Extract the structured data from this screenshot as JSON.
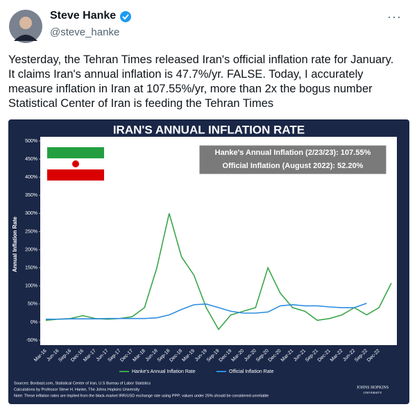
{
  "tweet": {
    "name": "Steve Hanke",
    "handle": "@steve_hanke",
    "text": "Yesterday, the Tehran Times released Iran's official inflation rate for January. It claims Iran's annual inflation is 47.7%/yr. FALSE. Today, I accurately measure inflation in Iran at 107.55%/yr, more than 2x the bogus number Statistical Center of Iran is feeding the Tehran Times"
  },
  "chart_data": {
    "type": "line",
    "title": "IRAN'S ANNUAL INFLATION RATE",
    "y_label": "Annual Inflation Rate",
    "categories": [
      "Mar-16",
      "Jun-16",
      "Sep-16",
      "Dec-16",
      "Mar-17",
      "Jun-17",
      "Sep-17",
      "Dec-17",
      "Mar-18",
      "Jun-18",
      "Sep-18",
      "Dec-18",
      "Mar-19",
      "Jun-19",
      "Sep-19",
      "Dec-19",
      "Mar-20",
      "Jun-20",
      "Sep-20",
      "Dec-20",
      "Mar-21",
      "Jun-21",
      "Sep-21",
      "Dec-21",
      "Mar-22",
      "Jun-22",
      "Sep-22",
      "Dec-22",
      null
    ],
    "series": [
      {
        "name": "Hanke's Annual Inflation Rate",
        "color": "#3aa64a",
        "values": [
          5,
          8,
          10,
          18,
          10,
          8,
          10,
          15,
          40,
          150,
          300,
          180,
          130,
          40,
          -20,
          20,
          30,
          40,
          150,
          80,
          40,
          30,
          5,
          10,
          20,
          40,
          20,
          40,
          107.55
        ]
      },
      {
        "name": "Official Inflation Rate",
        "color": "#2e8de0",
        "values": [
          8,
          8,
          9,
          9,
          9,
          10,
          10,
          10,
          10,
          12,
          20,
          35,
          48,
          50,
          40,
          30,
          25,
          25,
          28,
          45,
          48,
          45,
          45,
          42,
          40,
          40,
          52,
          null,
          null
        ]
      }
    ],
    "ylim": [
      -50,
      500
    ],
    "yticks": [
      {
        "value": -50,
        "label": "-50%"
      },
      {
        "value": 0,
        "label": "0%"
      },
      {
        "value": 50,
        "label": "50%"
      },
      {
        "value": 100,
        "label": "100%"
      },
      {
        "value": 150,
        "label": "150%"
      },
      {
        "value": 200,
        "label": "200%"
      },
      {
        "value": 250,
        "label": "250%"
      },
      {
        "value": 300,
        "label": "300%"
      },
      {
        "value": 350,
        "label": "350%"
      },
      {
        "value": 400,
        "label": "400%"
      },
      {
        "value": 450,
        "label": "450%"
      },
      {
        "value": 500,
        "label": "500%"
      }
    ],
    "annotations": [
      "Hanke's Annual Inflation (2/23/23): 107.55%",
      "Official Inflation (August 2022): 52.20%"
    ],
    "footnotes": [
      "Sources: Bonbast.com, Statistical Center of Iran, U.S Bureau of Labor Statistics",
      "Calculations by Professor Steve H. Hanke, The Johns Hopkins University",
      "Note: These inflation rates are implied from the black-market IRR/USD exchange rate using PPP; values under 25% should be considered unreliable"
    ],
    "logo": [
      "JOHNS HOPKINS",
      "UNIVERSITY"
    ]
  }
}
